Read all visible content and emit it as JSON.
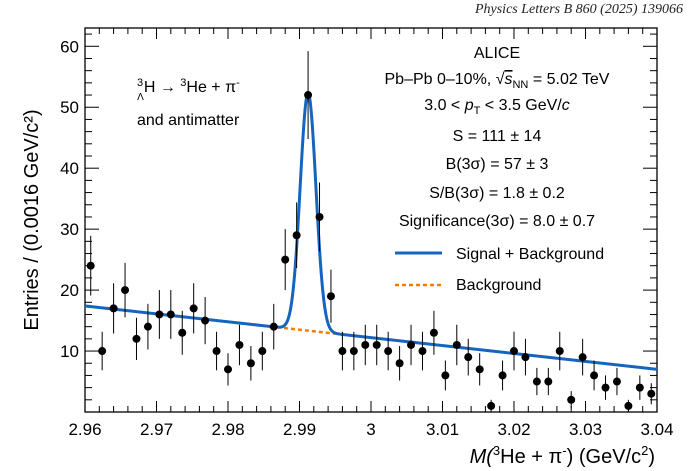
{
  "header": {
    "journal": "Physics Letters B 860 (2025) 139066"
  },
  "chart_data": {
    "type": "scatter",
    "title": "",
    "xlabel": {
      "m": "M(",
      "sup": "3",
      "rest": "He + π",
      "sup2": "-",
      "end": ") (GeV/c",
      "sup3": "2",
      "close": ")"
    },
    "ylabel": "Entries / (0.0016 GeV/c²)",
    "xlim": [
      2.96,
      3.04
    ],
    "ylim": [
      0,
      63
    ],
    "xticks": [
      2.96,
      2.97,
      2.98,
      2.99,
      3.0,
      3.01,
      3.02,
      3.03,
      3.04
    ],
    "xtick_labels": [
      "2.96",
      "2.97",
      "2.98",
      "2.99",
      "3",
      "3.01",
      "3.02",
      "3.03",
      "3.04"
    ],
    "yticks": [
      10,
      20,
      30,
      40,
      50,
      60
    ],
    "ytick_labels": [
      "10",
      "20",
      "30",
      "40",
      "50",
      "60"
    ],
    "decay_label": {
      "h_pre": "3",
      "h_sub": "Λ",
      "h": "H",
      "arrow": " → ",
      "he_pre": "3",
      "he": "He + π",
      "pi_sup": "-"
    },
    "antimatter_label": "and antimatter",
    "info": {
      "experiment": "ALICE",
      "system": "Pb–Pb 0–10%, ",
      "sqrt_s": "s",
      "nn": "NN",
      "energy": " = 5.02 TeV",
      "pt_pre": "3.0 <  ",
      "pt": "p",
      "pt_sub": "T",
      "pt_post": " < 3.5 GeV/",
      "pt_c": "c",
      "signal": "S = 111 ± 14",
      "background": "B(3σ) = 57 ± 3",
      "ratio": "S/B(3σ) = 1.8 ± 0.2",
      "significance": "Significance(3σ) = 8.0 ± 0.7"
    },
    "legend": {
      "position": "right",
      "entries": [
        {
          "label": "Signal + Background",
          "color": "#1565c0",
          "style": "solid"
        },
        {
          "label": "Background",
          "color": "#f57c00",
          "style": "dashed"
        }
      ]
    },
    "points": {
      "x": [
        2.9608,
        2.9624,
        2.964,
        2.9656,
        2.9672,
        2.9688,
        2.9704,
        2.972,
        2.9736,
        2.9752,
        2.9768,
        2.9784,
        2.98,
        2.9816,
        2.9832,
        2.9848,
        2.9864,
        2.988,
        2.9896,
        2.9912,
        2.9928,
        2.9944,
        2.996,
        2.9976,
        2.9992,
        3.0008,
        3.0024,
        3.004,
        3.0056,
        3.0072,
        3.0088,
        3.0104,
        3.012,
        3.0136,
        3.0152,
        3.0168,
        3.0184,
        3.02,
        3.0216,
        3.0232,
        3.0248,
        3.0264,
        3.028,
        3.0296,
        3.0312,
        3.0328,
        3.0344,
        3.036,
        3.0376,
        3.0392
      ],
      "y": [
        24,
        10,
        17,
        20,
        12,
        14,
        16,
        16,
        13,
        17,
        15,
        10,
        7,
        11,
        8,
        10,
        14,
        25,
        29,
        52,
        32,
        19,
        10,
        10,
        11,
        11,
        10,
        8,
        11,
        10,
        13,
        6,
        11,
        9,
        7,
        1,
        6,
        10,
        9,
        5,
        5,
        10,
        2,
        9,
        6,
        4,
        5,
        1,
        4,
        3
      ]
    },
    "fit": {
      "background": {
        "a": 17.4,
        "b": -0.13,
        "description": "linear in x"
      },
      "signal": {
        "amplitude": 39.0,
        "mean": 2.9912,
        "sigma": 0.0011
      }
    }
  }
}
